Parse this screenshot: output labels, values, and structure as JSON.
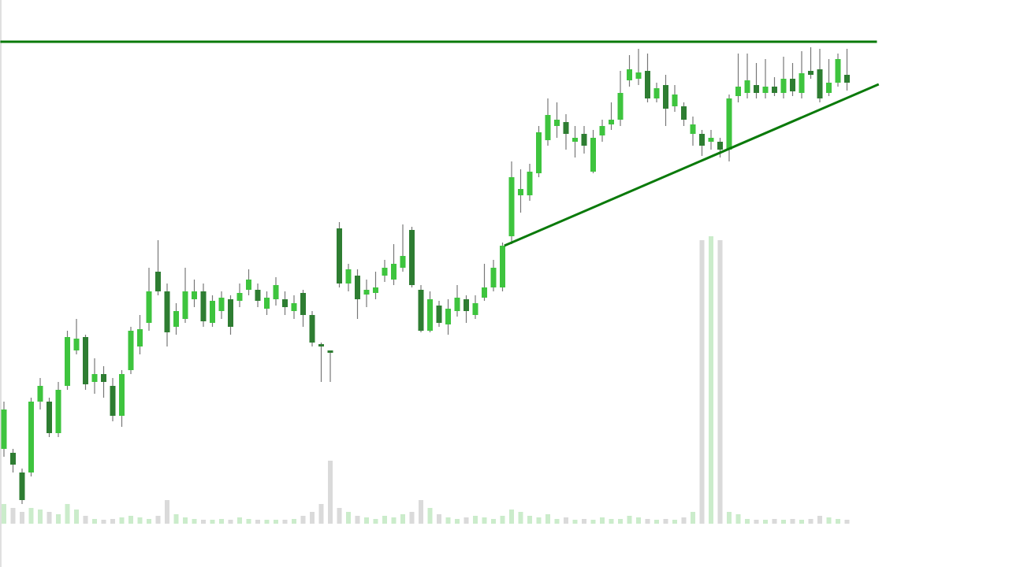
{
  "chart_data": {
    "type": "candlestick",
    "open": [
      150,
      145,
      120,
      120,
      210,
      210,
      170,
      230,
      275,
      292,
      235,
      245,
      230,
      192,
      250,
      280,
      310,
      375,
      350,
      305,
      315,
      340,
      350,
      310,
      325,
      340,
      338,
      352,
      352,
      328,
      340,
      340,
      325,
      348,
      320,
      283,
      275,
      430,
      360,
      370,
      346,
      348,
      370,
      365,
      380,
      428,
      352,
      300,
      332,
      308,
      325,
      340,
      320,
      342,
      355,
      355,
      420,
      472,
      472,
      500,
      542,
      560,
      565,
      540,
      550,
      502,
      548,
      562,
      568,
      618,
      620,
      630,
      595,
      612,
      585,
      585,
      550,
      550,
      540,
      540,
      530,
      598,
      602,
      612,
      602,
      610,
      602,
      620,
      602,
      630,
      632,
      602,
      615,
      625
    ],
    "high": [
      210,
      150,
      125,
      215,
      240,
      215,
      235,
      300,
      315,
      295,
      265,
      255,
      240,
      250,
      305,
      320,
      380,
      415,
      360,
      335,
      380,
      365,
      360,
      345,
      350,
      345,
      360,
      378,
      360,
      350,
      368,
      350,
      345,
      352,
      325,
      285,
      275,
      438,
      385,
      378,
      365,
      375,
      390,
      410,
      435,
      432,
      358,
      350,
      338,
      340,
      358,
      345,
      345,
      385,
      390,
      412,
      515,
      505,
      512,
      560,
      595,
      590,
      575,
      560,
      560,
      555,
      568,
      590,
      630,
      650,
      658,
      652,
      615,
      625,
      612,
      590,
      572,
      555,
      555,
      545,
      600,
      652,
      652,
      640,
      645,
      622,
      648,
      640,
      655,
      660,
      658,
      645,
      652,
      658
    ],
    "low": [
      140,
      120,
      80,
      115,
      200,
      165,
      165,
      225,
      270,
      225,
      220,
      215,
      185,
      178,
      245,
      270,
      300,
      345,
      280,
      295,
      310,
      330,
      305,
      305,
      315,
      295,
      330,
      345,
      330,
      320,
      332,
      320,
      315,
      305,
      280,
      235,
      235,
      355,
      350,
      315,
      330,
      340,
      362,
      358,
      375,
      355,
      298,
      298,
      305,
      295,
      318,
      310,
      315,
      338,
      350,
      350,
      410,
      450,
      465,
      495,
      535,
      545,
      530,
      520,
      525,
      500,
      540,
      555,
      560,
      610,
      612,
      590,
      590,
      560,
      578,
      560,
      535,
      522,
      530,
      520,
      515,
      590,
      595,
      595,
      595,
      598,
      595,
      598,
      595,
      620,
      590,
      598,
      610,
      605
    ],
    "close": [
      200,
      130,
      85,
      210,
      230,
      170,
      225,
      292,
      290,
      232,
      245,
      235,
      192,
      245,
      300,
      302,
      350,
      350,
      298,
      325,
      350,
      350,
      312,
      338,
      342,
      305,
      348,
      365,
      338,
      342,
      358,
      330,
      335,
      320,
      285,
      280,
      272,
      360,
      378,
      340,
      352,
      355,
      380,
      385,
      395,
      358,
      300,
      340,
      310,
      328,
      342,
      325,
      335,
      355,
      380,
      408,
      495,
      480,
      502,
      552,
      574,
      568,
      550,
      545,
      535,
      545,
      560,
      568,
      602,
      632,
      628,
      595,
      608,
      582,
      600,
      568,
      562,
      535,
      545,
      530,
      595,
      610,
      618,
      602,
      610,
      602,
      620,
      604,
      627,
      625,
      595,
      615,
      645,
      615
    ],
    "volume": [
      25,
      20,
      15,
      20,
      18,
      15,
      12,
      25,
      18,
      10,
      6,
      5,
      6,
      8,
      10,
      8,
      6,
      10,
      30,
      12,
      8,
      6,
      5,
      5,
      6,
      5,
      8,
      6,
      5,
      5,
      5,
      5,
      6,
      10,
      15,
      25,
      80,
      20,
      15,
      10,
      8,
      6,
      10,
      8,
      12,
      15,
      30,
      20,
      12,
      8,
      6,
      8,
      10,
      8,
      6,
      10,
      18,
      15,
      10,
      8,
      12,
      6,
      8,
      5,
      6,
      5,
      8,
      6,
      6,
      10,
      8,
      6,
      5,
      6,
      5,
      8,
      15,
      360,
      365,
      360,
      15,
      12,
      6,
      5,
      5,
      6,
      5,
      6,
      5,
      6,
      10,
      8,
      6,
      5
    ],
    "ylim": [
      0,
      720
    ],
    "y2lim": [
      0,
      720
    ],
    "up_color": "#3ec43e",
    "down_color": "#2e7d32",
    "volume_up_color": "#cbeccb",
    "volume_down_color": "#dadada",
    "line_color": "#0a7a0a",
    "resistance": {
      "x": [
        -0.4,
        96.3
      ],
      "y": [
        667,
        667
      ]
    },
    "trendline": {
      "x": [
        55.2,
        96.5
      ],
      "y": [
        408,
        613
      ]
    }
  }
}
